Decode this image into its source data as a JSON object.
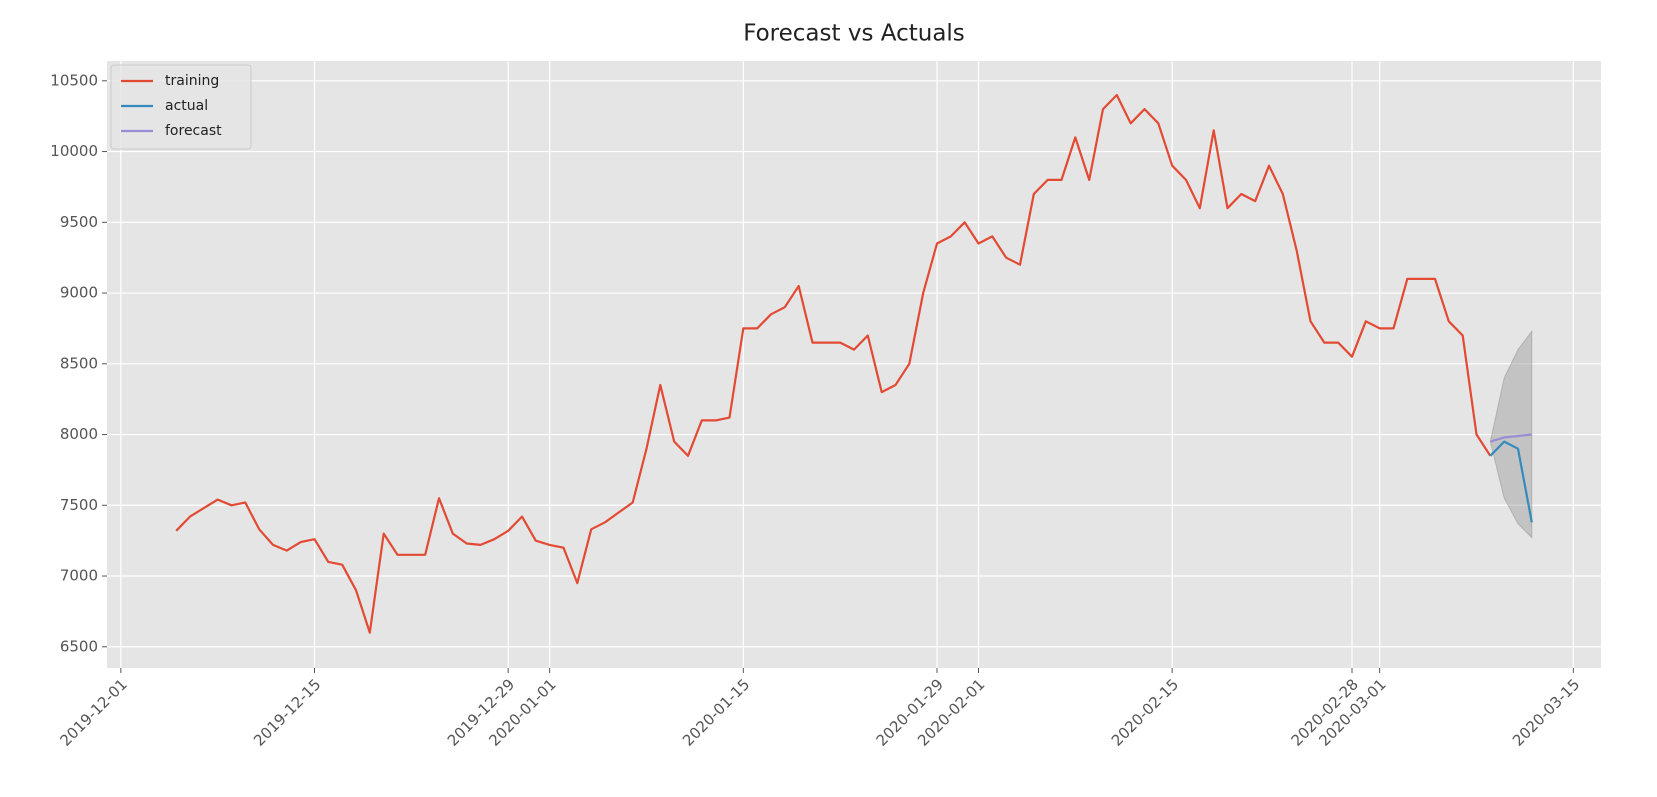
{
  "chart_data": {
    "type": "line",
    "title": "Forecast vs Actuals",
    "series": [
      {
        "name": "training",
        "color": "#e24a33",
        "x": [
          "2019-12-05",
          "2019-12-06",
          "2019-12-07",
          "2019-12-08",
          "2019-12-09",
          "2019-12-10",
          "2019-12-11",
          "2019-12-12",
          "2019-12-13",
          "2019-12-14",
          "2019-12-15",
          "2019-12-16",
          "2019-12-17",
          "2019-12-18",
          "2019-12-19",
          "2019-12-20",
          "2019-12-21",
          "2019-12-22",
          "2019-12-23",
          "2019-12-24",
          "2019-12-25",
          "2019-12-26",
          "2019-12-27",
          "2019-12-28",
          "2019-12-29",
          "2019-12-30",
          "2019-12-31",
          "2020-01-01",
          "2020-01-02",
          "2020-01-03",
          "2020-01-04",
          "2020-01-05",
          "2020-01-06",
          "2020-01-07",
          "2020-01-08",
          "2020-01-09",
          "2020-01-10",
          "2020-01-11",
          "2020-01-12",
          "2020-01-13",
          "2020-01-14",
          "2020-01-15",
          "2020-01-16",
          "2020-01-17",
          "2020-01-18",
          "2020-01-19",
          "2020-01-20",
          "2020-01-21",
          "2020-01-22",
          "2020-01-23",
          "2020-01-24",
          "2020-01-25",
          "2020-01-26",
          "2020-01-27",
          "2020-01-28",
          "2020-01-29",
          "2020-01-30",
          "2020-01-31",
          "2020-02-01",
          "2020-02-02",
          "2020-02-03",
          "2020-02-04",
          "2020-02-05",
          "2020-02-06",
          "2020-02-07",
          "2020-02-08",
          "2020-02-09",
          "2020-02-10",
          "2020-02-11",
          "2020-02-12",
          "2020-02-13",
          "2020-02-14",
          "2020-02-15",
          "2020-02-16",
          "2020-02-17",
          "2020-02-18",
          "2020-02-19",
          "2020-02-20",
          "2020-02-21",
          "2020-02-22",
          "2020-02-23",
          "2020-02-24",
          "2020-02-25",
          "2020-02-26",
          "2020-02-27",
          "2020-02-28",
          "2020-02-29",
          "2020-03-01",
          "2020-03-02",
          "2020-03-03",
          "2020-03-04",
          "2020-03-05",
          "2020-03-06",
          "2020-03-07",
          "2020-03-08",
          "2020-03-09"
        ],
        "values": [
          7320,
          7420,
          7480,
          7540,
          7500,
          7520,
          7330,
          7220,
          7180,
          7240,
          7260,
          7100,
          7080,
          6900,
          6600,
          7300,
          7150,
          7150,
          7150,
          7550,
          7300,
          7230,
          7220,
          7260,
          7320,
          7420,
          7250,
          7220,
          7200,
          6950,
          7330,
          7380,
          7450,
          7520,
          7900,
          8350,
          7950,
          7850,
          8100,
          8100,
          8120,
          8750,
          8750,
          8850,
          8900,
          9050,
          8650,
          8650,
          8650,
          8600,
          8700,
          8300,
          8350,
          8500,
          9000,
          9350,
          9400,
          9500,
          9350,
          9400,
          9250,
          9200,
          9700,
          9800,
          9800,
          10100,
          9800,
          10300,
          10400,
          10200,
          10300,
          10200,
          9900,
          9800,
          9600,
          10150,
          9600,
          9700,
          9650,
          9900,
          9700,
          9300,
          8800,
          8650,
          8650,
          8550,
          8800,
          8750,
          8750,
          9100,
          9100,
          9100,
          8800,
          8700,
          8000,
          7850
        ]
      },
      {
        "name": "actual",
        "color": "#348abd",
        "x": [
          "2020-03-09",
          "2020-03-10",
          "2020-03-11",
          "2020-03-12"
        ],
        "values": [
          7850,
          7950,
          7900,
          7380
        ]
      },
      {
        "name": "forecast",
        "color": "#988ed5",
        "x": [
          "2020-03-09",
          "2020-03-10",
          "2020-03-11",
          "2020-03-12"
        ],
        "values": [
          7950,
          7980,
          7990,
          8000
        ]
      }
    ],
    "band": {
      "color": "#999999",
      "x": [
        "2020-03-09",
        "2020-03-10",
        "2020-03-11",
        "2020-03-12"
      ],
      "lower": [
        7950,
        7550,
        7370,
        7270
      ],
      "upper": [
        7950,
        8400,
        8600,
        8730
      ]
    },
    "xlim": [
      "2019-11-30",
      "2020-03-17"
    ],
    "xticks": [
      "2019-12-01",
      "2019-12-15",
      "2019-12-29",
      "2020-01-01",
      "2020-01-15",
      "2020-01-29",
      "2020-02-01",
      "2020-02-15",
      "2020-02-28",
      "2020-03-01",
      "2020-03-15"
    ],
    "ylim": [
      6350,
      10640
    ],
    "yticks": [
      6500,
      7000,
      7500,
      8000,
      8500,
      9000,
      9500,
      10000,
      10500
    ],
    "grid": true,
    "legend": "upper left"
  }
}
